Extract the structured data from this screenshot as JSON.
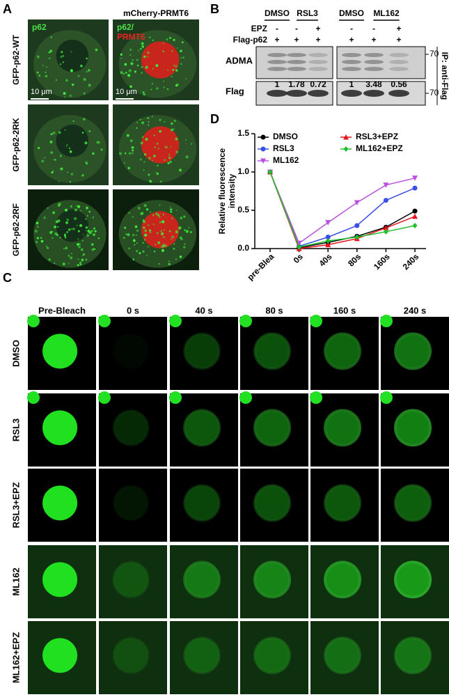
{
  "figure": {
    "panel_a": {
      "label": "A",
      "header": "mCherry-PRMT6",
      "rows": [
        "GFP-p62-WT",
        "GFP-p62-2RK",
        "GFP-p62-2RF"
      ],
      "green_channel": "p62",
      "merge_green": "p62/",
      "merge_red": "PRMT6",
      "scale_bar": "10 μm"
    },
    "panel_b": {
      "label": "B",
      "groups": [
        "DMSO",
        "RSL3",
        "DMSO",
        "ML162"
      ],
      "treatments": [
        {
          "name": "EPZ",
          "lanes": [
            "-",
            "-",
            "+",
            "-",
            "-",
            "+"
          ]
        },
        {
          "name": "Flag-p62",
          "lanes": [
            "+",
            "+",
            "+",
            "+",
            "+",
            "+"
          ]
        }
      ],
      "blots": [
        "ADMA",
        "Flag"
      ],
      "quantification": [
        1,
        1.78,
        0.72,
        1,
        3.48,
        0.56
      ],
      "marker": 70,
      "side_label": "IP: anti-Flag"
    },
    "panel_c": {
      "label": "C",
      "columns": [
        "Pre-Bleach",
        "0 s",
        "40 s",
        "80 s",
        "160 s",
        "240 s"
      ],
      "rows": [
        "DMSO",
        "RSL3",
        "RSL3+EPZ",
        "ML162",
        "ML162+EPZ"
      ]
    },
    "panel_d": {
      "label": "D"
    }
  },
  "chart_data": {
    "type": "line",
    "ylabel": "Relative fluorescence intensity",
    "categories": [
      "pre-Blea",
      "0s",
      "40s",
      "80s",
      "160s",
      "240s"
    ],
    "series": [
      {
        "name": "DMSO",
        "color": "#000000",
        "marker": "circle",
        "values": [
          1.0,
          0.01,
          0.08,
          0.16,
          0.28,
          0.49
        ]
      },
      {
        "name": "RSL3",
        "color": "#3a4ee8",
        "marker": "circle",
        "values": [
          1.0,
          0.03,
          0.15,
          0.3,
          0.63,
          0.79
        ]
      },
      {
        "name": "ML162",
        "color": "#b84fe0",
        "marker": "triangle-down",
        "values": [
          1.0,
          0.07,
          0.34,
          0.6,
          0.83,
          0.92
        ]
      },
      {
        "name": "RSL3+EPZ",
        "color": "#e8141c",
        "marker": "triangle",
        "values": [
          1.0,
          0.0,
          0.05,
          0.13,
          0.27,
          0.42
        ]
      },
      {
        "name": "ML162+EPZ",
        "color": "#1fbf2c",
        "marker": "diamond",
        "values": [
          1.0,
          0.02,
          0.1,
          0.15,
          0.22,
          0.3
        ]
      }
    ],
    "ylim": [
      0,
      1.5
    ],
    "yticks": [
      {
        "value": 0,
        "label": "0.0"
      },
      {
        "value": 0.5,
        "label": "0.5"
      },
      {
        "value": 1,
        "label": "1.0"
      },
      {
        "value": 1.5,
        "label": "1.5"
      }
    ]
  }
}
